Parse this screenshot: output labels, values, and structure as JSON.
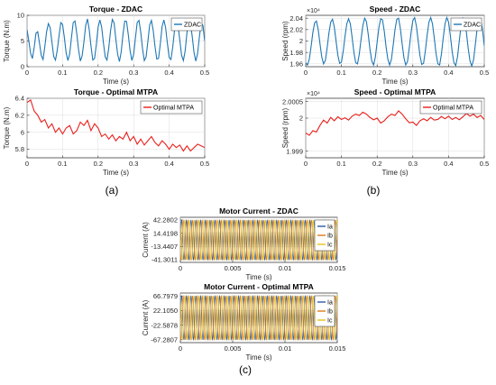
{
  "figure": {
    "panel_labels": [
      "(a)",
      "(b)",
      "(c)"
    ]
  },
  "colors": {
    "zdac": "#1f77b4",
    "mtpa": "#e8201c",
    "ia": "#2a5ca8",
    "ib": "#e07b1a",
    "ic": "#e6c21a"
  },
  "chart_data": [
    {
      "type": "line",
      "title": "Torque - ZDAC",
      "xlabel": "Time (s)",
      "ylabel": "Torque (N.m)",
      "xlim": [
        0,
        0.5
      ],
      "ylim": [
        0,
        10
      ],
      "xticks": [
        "0",
        "0.1",
        "0.2",
        "0.3",
        "0.4",
        "0.5"
      ],
      "yticks": [
        "0",
        "5",
        "10"
      ],
      "legend": "top-right",
      "grid": true,
      "series": [
        {
          "name": "ZDAC",
          "color": "#1f77b4",
          "x": [
            0,
            0.005,
            0.01,
            0.015,
            0.02,
            0.025,
            0.03,
            0.035,
            0.04,
            0.045,
            0.05,
            0.055,
            0.06,
            0.065,
            0.07,
            0.075,
            0.08,
            0.085,
            0.09,
            0.095,
            0.1,
            0.105,
            0.11,
            0.115,
            0.12,
            0.125,
            0.13,
            0.135,
            0.14,
            0.145,
            0.15,
            0.155,
            0.16,
            0.165,
            0.17,
            0.175,
            0.18,
            0.185,
            0.19,
            0.195,
            0.2,
            0.205,
            0.21,
            0.215,
            0.22,
            0.225,
            0.23,
            0.235,
            0.24,
            0.245,
            0.25,
            0.255,
            0.26,
            0.265,
            0.27,
            0.275,
            0.28,
            0.285,
            0.29,
            0.295,
            0.3,
            0.305,
            0.31,
            0.315,
            0.32,
            0.325,
            0.33,
            0.335,
            0.34,
            0.345,
            0.35,
            0.355,
            0.36,
            0.365,
            0.37,
            0.375,
            0.38,
            0.385,
            0.39,
            0.395,
            0.4,
            0.405,
            0.41,
            0.415,
            0.42,
            0.425,
            0.43,
            0.435,
            0.44,
            0.445,
            0.45,
            0.455,
            0.46,
            0.465,
            0.47,
            0.475,
            0.48,
            0.485,
            0.49,
            0.495,
            0.5
          ],
          "y": [
            7.2,
            5.0,
            2.6,
            1.6,
            3.7,
            6.5,
            6.8,
            4.6,
            2.2,
            1.4,
            3.9,
            6.8,
            8.4,
            7.6,
            4.8,
            2.0,
            1.3,
            3.2,
            6.0,
            8.6,
            8.2,
            5.7,
            2.7,
            1.2,
            2.5,
            5.7,
            8.6,
            8.9,
            6.4,
            3.3,
            1.1,
            2.1,
            4.8,
            8.0,
            9.3,
            7.2,
            4.0,
            1.3,
            1.6,
            4.3,
            7.7,
            9.1,
            7.7,
            4.6,
            1.9,
            1.3,
            3.7,
            7.0,
            9.2,
            8.5,
            5.3,
            2.4,
            1.0,
            2.9,
            6.3,
            8.9,
            8.8,
            6.2,
            3.1,
            1.2,
            2.4,
            5.6,
            8.6,
            9.0,
            6.7,
            3.5,
            1.2,
            1.9,
            4.9,
            8.1,
            9.0,
            7.1,
            4.0,
            1.5,
            1.6,
            4.4,
            7.8,
            9.1,
            7.6,
            4.5,
            1.8,
            1.4,
            3.8,
            7.1,
            8.9,
            8.0,
            5.1,
            2.2,
            1.2,
            3.1,
            6.6,
            8.8,
            8.4,
            5.8,
            2.7,
            1.1,
            2.6,
            5.8,
            8.5,
            8.0,
            5.0
          ]
        }
      ]
    },
    {
      "type": "line",
      "title": "Torque - Optimal MTPA",
      "xlabel": "Time (s)",
      "ylabel": "Torque (N.m)",
      "xlim": [
        0,
        0.5
      ],
      "ylim": [
        5.7,
        6.4
      ],
      "xticks": [
        "0",
        "0.1",
        "0.2",
        "0.3",
        "0.4",
        "0.5"
      ],
      "yticks": [
        "5.8",
        "6",
        "6.2",
        "6.4"
      ],
      "legend": "top-right",
      "grid": true,
      "series": [
        {
          "name": "Optimal MTPA",
          "color": "#e8201c",
          "x": [
            0,
            0.01,
            0.02,
            0.03,
            0.04,
            0.05,
            0.06,
            0.07,
            0.08,
            0.09,
            0.1,
            0.11,
            0.12,
            0.13,
            0.14,
            0.15,
            0.16,
            0.17,
            0.18,
            0.19,
            0.2,
            0.21,
            0.22,
            0.23,
            0.24,
            0.25,
            0.26,
            0.27,
            0.28,
            0.29,
            0.3,
            0.31,
            0.32,
            0.33,
            0.34,
            0.35,
            0.36,
            0.37,
            0.38,
            0.39,
            0.4,
            0.41,
            0.42,
            0.43,
            0.44,
            0.45,
            0.46,
            0.47,
            0.48,
            0.49,
            0.5
          ],
          "y": [
            6.35,
            6.38,
            6.25,
            6.2,
            6.12,
            6.15,
            6.05,
            6.1,
            6.0,
            6.05,
            5.98,
            6.05,
            6.08,
            5.98,
            6.02,
            6.12,
            6.08,
            6.14,
            6.02,
            6.1,
            6.05,
            5.95,
            5.98,
            5.92,
            5.97,
            5.9,
            5.95,
            5.92,
            6.0,
            5.9,
            5.95,
            5.86,
            5.92,
            5.85,
            5.9,
            5.95,
            5.88,
            5.84,
            5.9,
            5.86,
            5.8,
            5.86,
            5.82,
            5.85,
            5.78,
            5.84,
            5.78,
            5.82,
            5.86,
            5.84,
            5.82
          ]
        }
      ]
    },
    {
      "type": "line",
      "title": "Speed - ZDAC",
      "xlabel": "Time (s)",
      "ylabel": "Speed (rpm)",
      "y_multiplier": "×10⁴",
      "xlim": [
        0,
        0.5
      ],
      "ylim": [
        1.955,
        2.045
      ],
      "xticks": [
        "0",
        "0.1",
        "0.2",
        "0.3",
        "0.4",
        "0.5"
      ],
      "yticks": [
        "1.96",
        "1.98",
        "2",
        "2.02",
        "2.04"
      ],
      "legend": "top-right",
      "grid": true,
      "series": [
        {
          "name": "ZDAC",
          "color": "#1f77b4",
          "x": [
            0,
            0.005,
            0.01,
            0.015,
            0.02,
            0.025,
            0.03,
            0.035,
            0.04,
            0.045,
            0.05,
            0.055,
            0.06,
            0.065,
            0.07,
            0.075,
            0.08,
            0.085,
            0.09,
            0.095,
            0.1,
            0.105,
            0.11,
            0.115,
            0.12,
            0.125,
            0.13,
            0.135,
            0.14,
            0.145,
            0.15,
            0.155,
            0.16,
            0.165,
            0.17,
            0.175,
            0.18,
            0.185,
            0.19,
            0.195,
            0.2,
            0.205,
            0.21,
            0.215,
            0.22,
            0.225,
            0.23,
            0.235,
            0.24,
            0.245,
            0.25,
            0.255,
            0.26,
            0.265,
            0.27,
            0.275,
            0.28,
            0.285,
            0.29,
            0.295,
            0.3,
            0.305,
            0.31,
            0.315,
            0.32,
            0.325,
            0.33,
            0.335,
            0.34,
            0.345,
            0.35,
            0.355,
            0.36,
            0.365,
            0.37,
            0.375,
            0.38,
            0.385,
            0.39,
            0.395,
            0.4,
            0.405,
            0.41,
            0.415,
            0.42,
            0.425,
            0.43,
            0.435,
            0.44,
            0.445,
            0.45,
            0.455,
            0.46,
            0.465,
            0.47,
            0.475,
            0.48,
            0.485,
            0.49,
            0.495,
            0.5
          ],
          "y": [
            1.962,
            1.958,
            1.968,
            1.99,
            2.015,
            2.032,
            2.035,
            2.02,
            1.995,
            1.972,
            1.96,
            1.966,
            1.988,
            2.014,
            2.033,
            2.038,
            2.025,
            2.0,
            1.975,
            1.961,
            1.963,
            1.982,
            2.008,
            2.03,
            2.039,
            2.03,
            2.006,
            1.98,
            1.962,
            1.96,
            1.977,
            2.003,
            2.027,
            2.04,
            2.034,
            2.012,
            1.985,
            1.965,
            1.958,
            1.972,
            1.998,
            2.024,
            2.039,
            2.037,
            2.017,
            1.99,
            1.968,
            1.958,
            1.968,
            1.993,
            2.02,
            2.038,
            2.04,
            2.022,
            1.995,
            1.971,
            1.958,
            1.964,
            1.988,
            2.015,
            2.036,
            2.041,
            2.026,
            2.0,
            1.974,
            1.959,
            1.961,
            1.983,
            2.01,
            2.033,
            2.041,
            2.03,
            2.005,
            1.978,
            1.96,
            1.958,
            1.977,
            2.005,
            2.03,
            2.041,
            2.033,
            2.01,
            1.982,
            1.962,
            1.957,
            1.972,
            2.0,
            2.027,
            2.04,
            2.036,
            2.015,
            1.987,
            1.965,
            1.956,
            1.967,
            1.994,
            2.022,
            2.039,
            2.038,
            2.02,
            1.992
          ]
        }
      ]
    },
    {
      "type": "line",
      "title": "Speed - Optimal MTPA",
      "xlabel": "Time (s)",
      "ylabel": "Speed (rpm)",
      "y_multiplier": "×10⁴",
      "xlim": [
        0,
        0.5
      ],
      "ylim": [
        1.9988,
        2.0006
      ],
      "xticks": [
        "0",
        "0.1",
        "0.2",
        "0.3",
        "0.4",
        "0.5"
      ],
      "yticks": [
        "1.999",
        "2",
        "2.0005"
      ],
      "legend": "top-right",
      "grid": true,
      "series": [
        {
          "name": "Optimal MTPA",
          "color": "#e8201c",
          "x": [
            0,
            0.01,
            0.02,
            0.03,
            0.04,
            0.05,
            0.06,
            0.07,
            0.08,
            0.09,
            0.1,
            0.11,
            0.12,
            0.13,
            0.14,
            0.15,
            0.16,
            0.17,
            0.18,
            0.19,
            0.2,
            0.21,
            0.22,
            0.23,
            0.24,
            0.25,
            0.26,
            0.27,
            0.28,
            0.29,
            0.3,
            0.31,
            0.32,
            0.33,
            0.34,
            0.35,
            0.36,
            0.37,
            0.38,
            0.39,
            0.4,
            0.41,
            0.42,
            0.43,
            0.44,
            0.45,
            0.46,
            0.47,
            0.48,
            0.49,
            0.5
          ],
          "y": [
            1.99955,
            1.99948,
            1.99962,
            1.99958,
            1.99978,
            1.99994,
            1.99985,
            2.00002,
            1.99992,
            2.00004,
            1.99996,
            2.00001,
            1.99994,
            2.00006,
            2.00012,
            2.00008,
            2.00018,
            2.00012,
            2.00002,
            1.99995,
            2.0,
            1.99985,
            1.99992,
            2.00004,
            2.00012,
            2.00008,
            2.00022,
            2.00012,
            1.99998,
            1.99986,
            1.99988,
            1.99978,
            1.99992,
            1.99998,
            1.99992,
            2.00002,
            1.99994,
            1.99996,
            2.00005,
            1.99998,
            2.00006,
            1.99996,
            2.00002,
            1.99995,
            2.00004,
            2.00014,
            2.00006,
            2.00012,
            2.00002,
            2.00008,
            1.99996
          ]
        }
      ]
    },
    {
      "type": "line",
      "title": "Motor Current - ZDAC",
      "xlabel": "Time (s)",
      "ylabel": "Current (A)",
      "xlim": [
        0,
        0.015
      ],
      "ylim": [
        -47,
        48
      ],
      "xticks": [
        "0",
        "0.005",
        "0.01",
        "0.015"
      ],
      "yticks": [
        "42.2802",
        "14.4198",
        "-13.4407",
        "-41.3011"
      ],
      "ytick_values": [
        42.2802,
        14.4198,
        -13.4407,
        -41.3011
      ],
      "legend": "right",
      "grid": true,
      "frequency_hz": 2200,
      "amplitude": 41.8,
      "series": [
        {
          "name": "Ia",
          "color": "#2a5ca8",
          "phase_deg": 0
        },
        {
          "name": "Ib",
          "color": "#e07b1a",
          "phase_deg": -120
        },
        {
          "name": "Ic",
          "color": "#e6c21a",
          "phase_deg": 120
        }
      ]
    },
    {
      "type": "line",
      "title": "Motor Current - Optimal MTPA",
      "xlabel": "Time (s)",
      "ylabel": "Current (A)",
      "xlim": [
        0,
        0.015
      ],
      "ylim": [
        -76,
        76
      ],
      "xticks": [
        "0",
        "0.005",
        "0.01",
        "0.015"
      ],
      "yticks": [
        "66.7979",
        "22.1050",
        "-22.5878",
        "-67.2807"
      ],
      "ytick_values": [
        66.7979,
        22.105,
        -22.5878,
        -67.2807
      ],
      "legend": "right",
      "grid": true,
      "frequency_hz": 2200,
      "amplitude": 67.0,
      "series": [
        {
          "name": "Ia",
          "color": "#2a5ca8",
          "phase_deg": 0
        },
        {
          "name": "Ib",
          "color": "#e07b1a",
          "phase_deg": -120
        },
        {
          "name": "Ic",
          "color": "#e6c21a",
          "phase_deg": 120
        }
      ]
    }
  ]
}
